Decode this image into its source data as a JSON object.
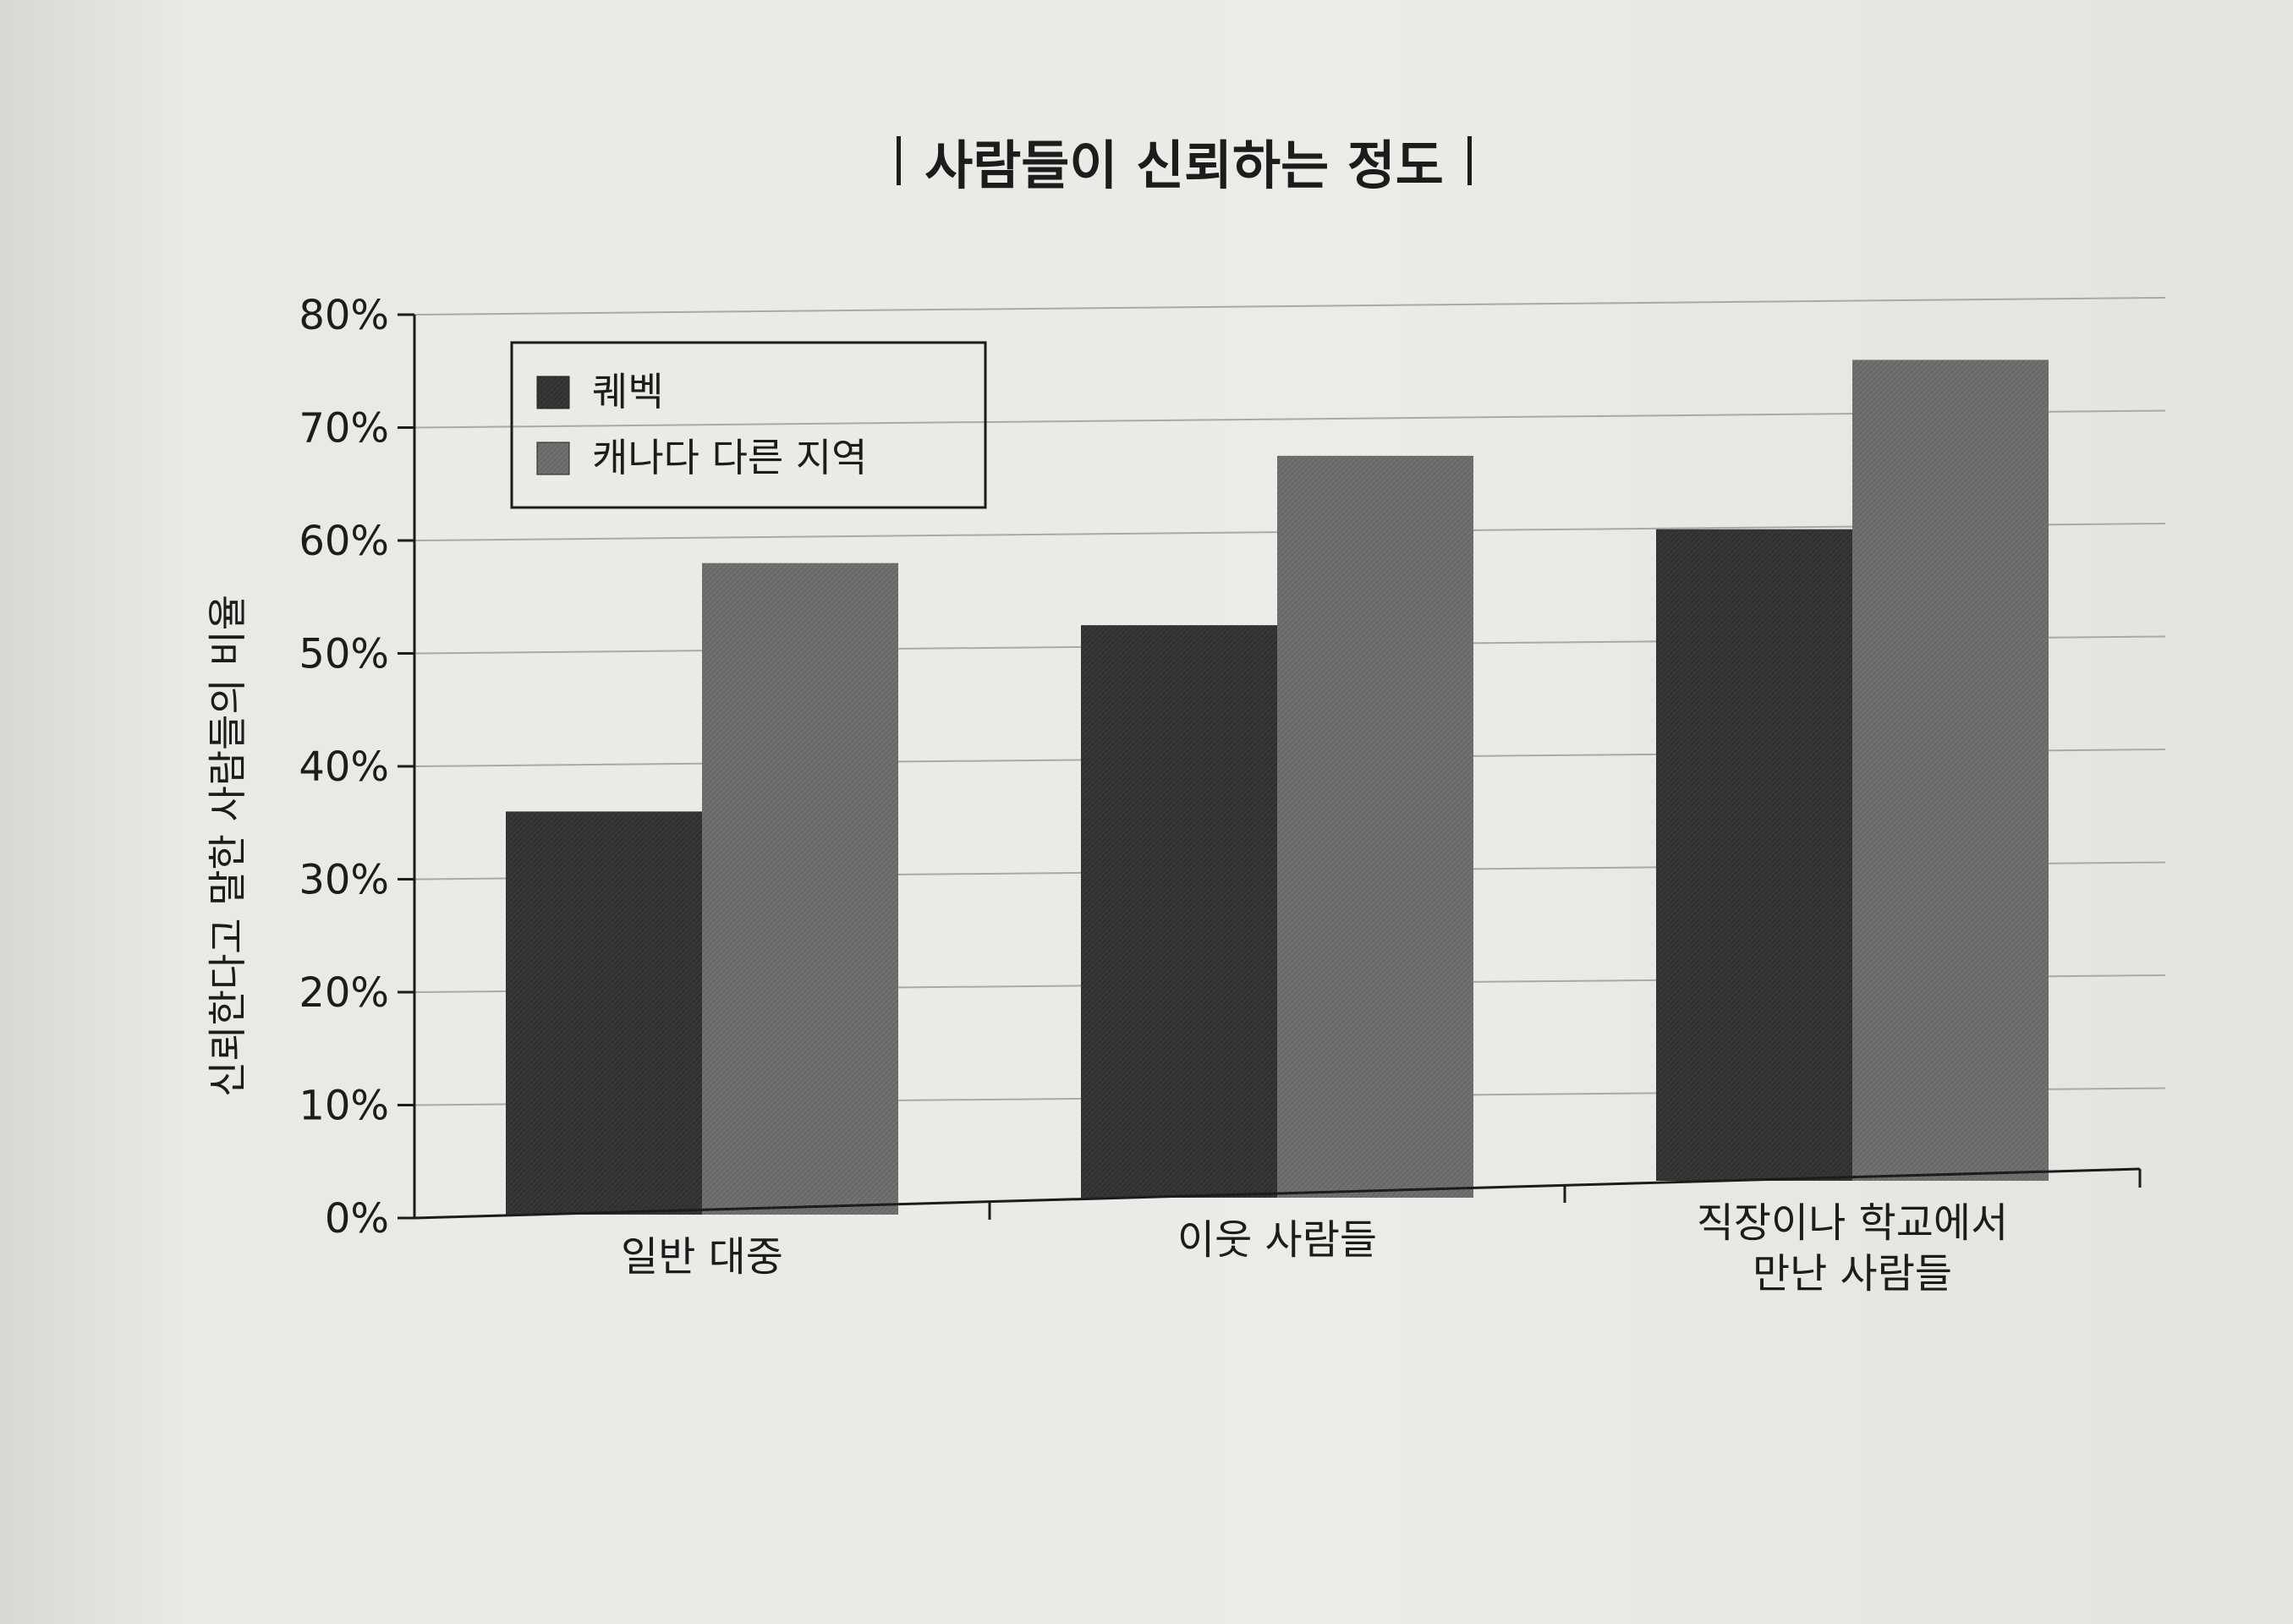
{
  "chart_data": {
    "type": "bar",
    "title": "사람들이 신뢰하는 정도",
    "ylabel": "신뢰한다고 말한 사람들의 비율",
    "xlabel": "",
    "categories": [
      [
        "일반 대중"
      ],
      [
        "이웃 사람들"
      ],
      [
        "직장이나 학교에서",
        "만난 사람들"
      ]
    ],
    "series": [
      {
        "name": "퀘벡",
        "values": [
          36,
          51,
          58
        ],
        "color": "#333333"
      },
      {
        "name": "캐나다 다른 지역",
        "values": [
          58,
          66,
          73
        ],
        "color": "#6e6e6e"
      }
    ],
    "ylim": [
      0,
      80
    ],
    "yticks": [
      "0%",
      "10%",
      "20%",
      "30%",
      "40%",
      "50%",
      "60%",
      "70%",
      "80%"
    ],
    "grid": true,
    "legend_position": "top-left"
  }
}
